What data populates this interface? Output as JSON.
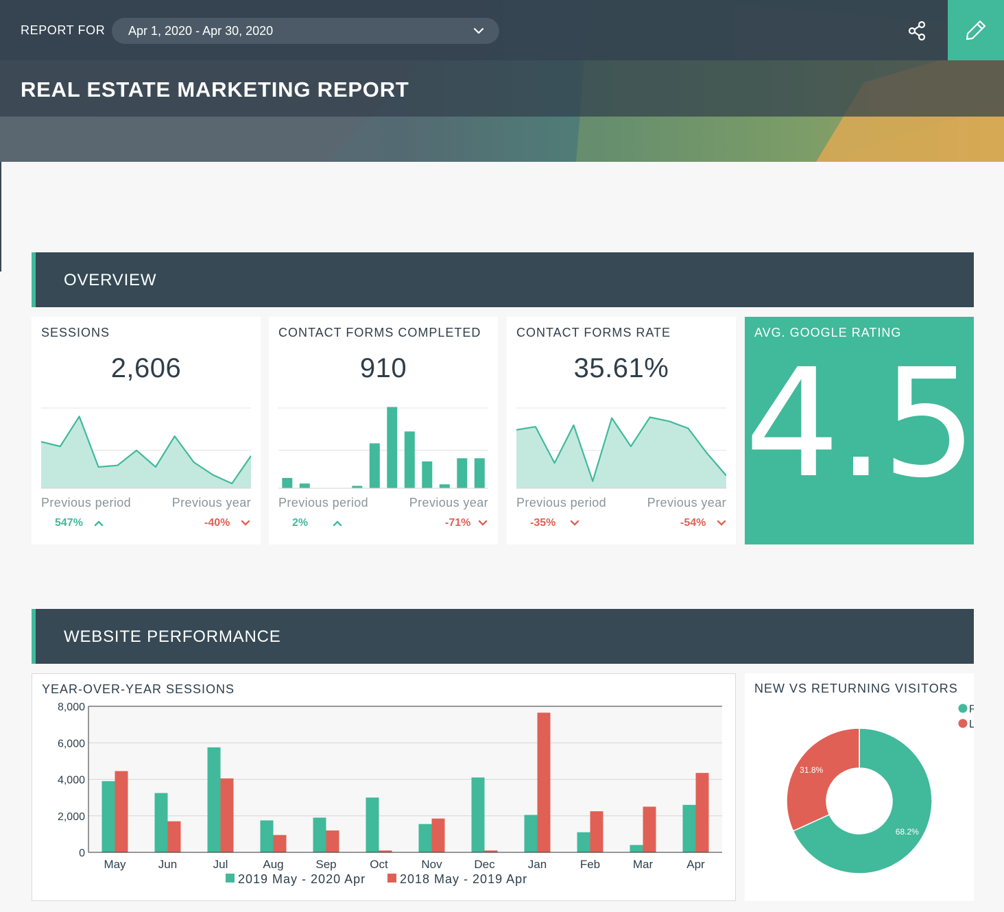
{
  "header": {
    "report_for_label": "REPORT FOR",
    "date_range": "Apr 1, 2020 - Apr 30, 2020",
    "title": "REAL ESTATE MARKETING REPORT",
    "share_icon": "share-icon",
    "edit_icon": "pencil-icon",
    "accent_color": "#41b99b"
  },
  "sections": {
    "overview": "OVERVIEW",
    "website_performance": "WEBSITE PERFORMANCE"
  },
  "kpis": [
    {
      "title": "SESSIONS",
      "value": "2,606",
      "chart_type": "area",
      "spark": [
        0.59,
        0.53,
        0.91,
        0.27,
        0.29,
        0.48,
        0.27,
        0.66,
        0.33,
        0.17,
        0.06,
        0.41
      ],
      "prev_period_label": "Previous period",
      "prev_period_value": "547%",
      "prev_period_trend": "up",
      "prev_year_label": "Previous year",
      "prev_year_value": "-40%",
      "prev_year_trend": "down"
    },
    {
      "title": "CONTACT FORMS COMPLETED",
      "value": "910",
      "chart_type": "bar",
      "spark": [
        0.13,
        0.06,
        0.0,
        0.0,
        0.03,
        0.57,
        1.03,
        0.72,
        0.34,
        0.05,
        0.38,
        0.38
      ],
      "prev_period_label": "Previous period",
      "prev_period_value": "2%",
      "prev_period_trend": "up",
      "prev_year_label": "Previous year",
      "prev_year_value": "-71%",
      "prev_year_trend": "down"
    },
    {
      "title": "CONTACT FORMS RATE",
      "value": "35.61%",
      "chart_type": "area",
      "spark": [
        0.74,
        0.78,
        0.32,
        0.8,
        0.09,
        0.89,
        0.53,
        0.9,
        0.85,
        0.76,
        0.44,
        0.16
      ],
      "prev_period_label": "Previous period",
      "prev_period_value": "-35%",
      "prev_period_trend": "down",
      "prev_year_label": "Previous year",
      "prev_year_value": "-54%",
      "prev_year_trend": "down"
    }
  ],
  "rating": {
    "title": "AVG. GOOGLE RATING",
    "value": "4.5"
  },
  "yoy": {
    "title": "YEAR-OVER-YEAR SESSIONS",
    "chart_data": {
      "type": "bar",
      "categories": [
        "May",
        "Jun",
        "Jul",
        "Aug",
        "Sep",
        "Oct",
        "Nov",
        "Dec",
        "Jan",
        "Feb",
        "Mar",
        "Apr"
      ],
      "series": [
        {
          "name": "2019 May - 2020 Apr",
          "color": "#41b99b",
          "values": [
            3900,
            3250,
            5750,
            1750,
            1900,
            3000,
            1550,
            4100,
            2050,
            1100,
            400,
            2600
          ]
        },
        {
          "name": "2018 May - 2019 Apr",
          "color": "#e06055",
          "values": [
            4450,
            1700,
            4050,
            950,
            1200,
            100,
            1850,
            100,
            7650,
            2250,
            2500,
            4350
          ]
        }
      ],
      "ylim": [
        0,
        8000
      ],
      "yticks": [
        0,
        2000,
        4000,
        6000,
        8000
      ],
      "ytick_labels": [
        "0",
        "2,000",
        "4,000",
        "6,000",
        "8,000"
      ],
      "legend": "bottom",
      "grid": true
    }
  },
  "nvr": {
    "title": "NEW VS RETURNING VISITORS",
    "chart_data": {
      "type": "pie",
      "donut": true,
      "slices": [
        {
          "label": "68.2%",
          "value": 68.2,
          "color": "#41b99b"
        },
        {
          "label": "31.8%",
          "value": 31.8,
          "color": "#e06055"
        }
      ],
      "legend_entries": [
        "R",
        "L"
      ],
      "legend": "top-right"
    }
  }
}
